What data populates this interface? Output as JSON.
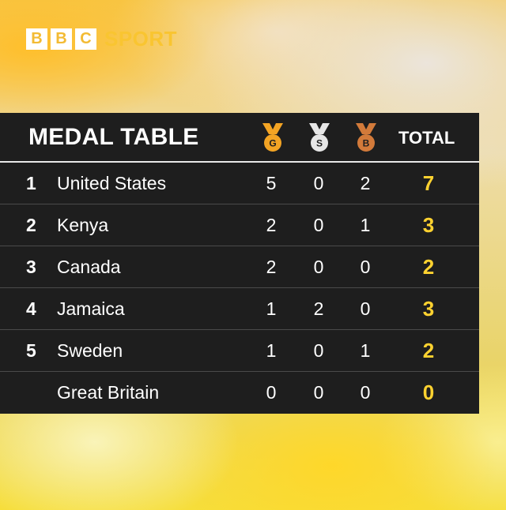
{
  "logo": {
    "blocks": [
      "B",
      "B",
      "C"
    ],
    "word": "SPORT"
  },
  "table": {
    "title": "MEDAL TABLE",
    "medal_icons": [
      {
        "icon": "gold-medal-icon",
        "letter": "G",
        "color": "#f3a424"
      },
      {
        "icon": "silver-medal-icon",
        "letter": "S",
        "color": "#e6e6e6"
      },
      {
        "icon": "bronze-medal-icon",
        "letter": "B",
        "color": "#d27a3a"
      }
    ],
    "total_header": "TOTAL",
    "rows": [
      {
        "rank": "1",
        "country": "United States",
        "gold": "5",
        "silver": "0",
        "bronze": "2",
        "total": "7"
      },
      {
        "rank": "2",
        "country": "Kenya",
        "gold": "2",
        "silver": "0",
        "bronze": "1",
        "total": "3"
      },
      {
        "rank": "3",
        "country": "Canada",
        "gold": "2",
        "silver": "0",
        "bronze": "0",
        "total": "2"
      },
      {
        "rank": "4",
        "country": "Jamaica",
        "gold": "1",
        "silver": "2",
        "bronze": "0",
        "total": "3"
      },
      {
        "rank": "5",
        "country": "Sweden",
        "gold": "1",
        "silver": "0",
        "bronze": "1",
        "total": "2"
      },
      {
        "rank": "",
        "country": "Great Britain",
        "gold": "0",
        "silver": "0",
        "bronze": "0",
        "total": "0"
      }
    ]
  },
  "colors": {
    "panel": "#1e1e1e",
    "total_accent": "#ffd230",
    "logo_accent": "#f9c531"
  }
}
